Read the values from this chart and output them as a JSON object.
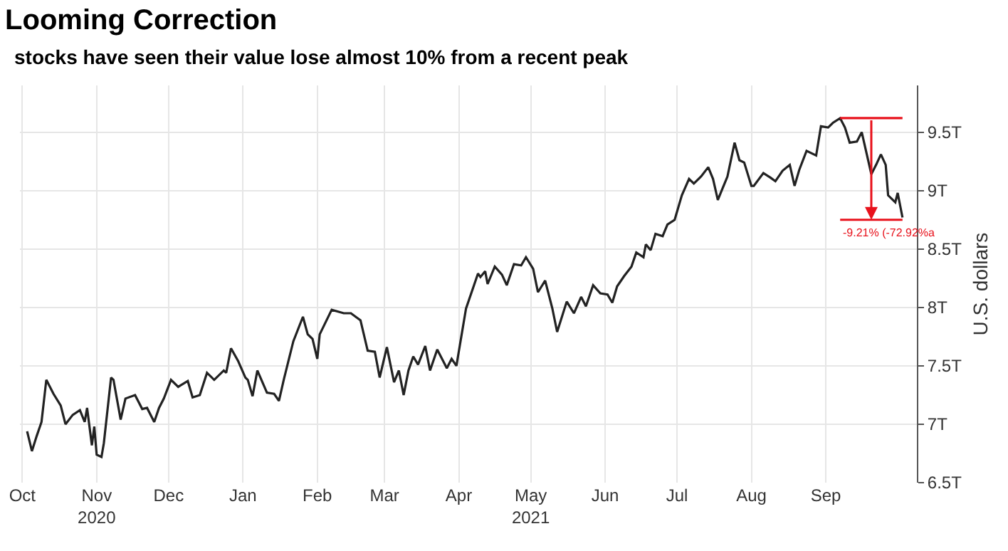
{
  "chart_data": {
    "type": "line",
    "title": "Looming Correction",
    "subtitle": "stocks have seen their value lose almost 10% from a recent peak",
    "ylabel": "U.S. dollars",
    "x": [
      "2020-10-03",
      "2020-10-05",
      "2020-10-07",
      "2020-10-09",
      "2020-10-11",
      "2020-10-14",
      "2020-10-17",
      "2020-10-19",
      "2020-10-22",
      "2020-10-25",
      "2020-10-27",
      "2020-10-28",
      "2020-10-30",
      "2020-10-31",
      "2020-11-01",
      "2020-11-03",
      "2020-11-04",
      "2020-11-07",
      "2020-11-08",
      "2020-11-11",
      "2020-11-13",
      "2020-11-17",
      "2020-11-20",
      "2020-11-22",
      "2020-11-25",
      "2020-11-27",
      "2020-11-29",
      "2020-12-02",
      "2020-12-05",
      "2020-12-09",
      "2020-12-11",
      "2020-12-14",
      "2020-12-17",
      "2020-12-20",
      "2020-12-24",
      "2020-12-25",
      "2020-12-27",
      "2020-12-30",
      "2021-01-02",
      "2021-01-03",
      "2021-01-05",
      "2021-01-07",
      "2021-01-11",
      "2021-01-14",
      "2021-01-16",
      "2021-01-18",
      "2021-01-22",
      "2021-01-26",
      "2021-01-28",
      "2021-01-30",
      "2021-02-01",
      "2021-02-02",
      "2021-02-07",
      "2021-02-12",
      "2021-02-15",
      "2021-02-19",
      "2021-02-22",
      "2021-02-25",
      "2021-02-27",
      "2021-03-02",
      "2021-03-05",
      "2021-03-07",
      "2021-03-09",
      "2021-03-11",
      "2021-03-13",
      "2021-03-15",
      "2021-03-18",
      "2021-03-20",
      "2021-03-23",
      "2021-03-27",
      "2021-03-29",
      "2021-03-31",
      "2021-04-04",
      "2021-04-09",
      "2021-04-10",
      "2021-04-12",
      "2021-04-13",
      "2021-04-16",
      "2021-04-19",
      "2021-04-21",
      "2021-04-24",
      "2021-04-27",
      "2021-04-29",
      "2021-05-02",
      "2021-05-04",
      "2021-05-07",
      "2021-05-10",
      "2021-05-12",
      "2021-05-16",
      "2021-05-19",
      "2021-05-22",
      "2021-05-24",
      "2021-05-27",
      "2021-05-30",
      "2021-06-02",
      "2021-06-04",
      "2021-06-06",
      "2021-06-09",
      "2021-06-12",
      "2021-06-14",
      "2021-06-17",
      "2021-06-18",
      "2021-06-20",
      "2021-06-22",
      "2021-06-25",
      "2021-06-27",
      "2021-06-30",
      "2021-07-03",
      "2021-07-06",
      "2021-07-08",
      "2021-07-11",
      "2021-07-14",
      "2021-07-16",
      "2021-07-18",
      "2021-07-20",
      "2021-07-22",
      "2021-07-25",
      "2021-07-27",
      "2021-07-29",
      "2021-08-01",
      "2021-08-02",
      "2021-08-06",
      "2021-08-09",
      "2021-08-11",
      "2021-08-14",
      "2021-08-17",
      "2021-08-19",
      "2021-08-21",
      "2021-08-24",
      "2021-08-28",
      "2021-08-30",
      "2021-09-02",
      "2021-09-04",
      "2021-09-07",
      "2021-09-09",
      "2021-09-11",
      "2021-09-14",
      "2021-09-16",
      "2021-09-18",
      "2021-09-20",
      "2021-09-22",
      "2021-09-24",
      "2021-09-26",
      "2021-09-27",
      "2021-09-30",
      "2021-10-01",
      "2021-10-03"
    ],
    "series": [
      {
        "color": "#222222",
        "values": [
          6.94,
          6.77,
          6.9,
          7.02,
          7.38,
          7.26,
          7.16,
          7.0,
          7.08,
          7.12,
          7.02,
          7.14,
          6.82,
          6.98,
          6.74,
          6.72,
          6.84,
          7.4,
          7.38,
          7.04,
          7.22,
          7.25,
          7.13,
          7.14,
          7.02,
          7.14,
          7.22,
          7.38,
          7.32,
          7.37,
          7.23,
          7.25,
          7.44,
          7.38,
          7.46,
          7.44,
          7.65,
          7.54,
          7.4,
          7.38,
          7.24,
          7.46,
          7.27,
          7.26,
          7.2,
          7.38,
          7.71,
          7.92,
          7.77,
          7.73,
          7.56,
          7.77,
          7.98,
          7.95,
          7.95,
          7.89,
          7.63,
          7.62,
          7.4,
          7.66,
          7.36,
          7.46,
          7.25,
          7.46,
          7.58,
          7.51,
          7.67,
          7.46,
          7.64,
          7.48,
          7.56,
          7.5,
          7.99,
          8.29,
          8.26,
          8.31,
          8.2,
          8.35,
          8.28,
          8.19,
          8.37,
          8.36,
          8.43,
          8.33,
          8.13,
          8.23,
          7.99,
          7.79,
          8.05,
          7.95,
          8.09,
          8.01,
          8.19,
          8.12,
          8.11,
          8.04,
          8.18,
          8.27,
          8.35,
          8.47,
          8.43,
          8.54,
          8.49,
          8.63,
          8.61,
          8.71,
          8.75,
          8.96,
          9.1,
          9.06,
          9.12,
          9.2,
          9.1,
          8.92,
          9.02,
          9.12,
          9.41,
          9.26,
          9.24,
          9.04,
          9.04,
          9.15,
          9.11,
          9.08,
          9.17,
          9.22,
          9.04,
          9.18,
          9.34,
          9.3,
          9.55,
          9.54,
          9.58,
          9.62,
          9.54,
          9.41,
          9.42,
          9.5,
          9.32,
          9.14,
          9.22,
          9.31,
          9.22,
          8.96,
          8.9,
          8.98,
          8.77
        ]
      },
      {
        "type": "line",
        "color": "#e8121c",
        "x": [
          "2021-09-07",
          "2021-10-03"
        ],
        "values": [
          9.62,
          9.62
        ]
      },
      {
        "type": "line",
        "color": "#e8121c",
        "x": [
          "2021-09-07",
          "2021-10-03"
        ],
        "values": [
          8.75,
          8.75
        ]
      }
    ],
    "xlim": [
      "2020-09-30",
      "2021-10-09"
    ],
    "xticks": [
      {
        "value": "2020-10-01",
        "label": "Oct"
      },
      {
        "value": "2020-11-01",
        "label": "Nov\n2020"
      },
      {
        "value": "2020-12-01",
        "label": "Dec"
      },
      {
        "value": "2021-01-01",
        "label": "Jan"
      },
      {
        "value": "2021-02-01",
        "label": "Feb"
      },
      {
        "value": "2021-03-01",
        "label": "Mar"
      },
      {
        "value": "2021-04-01",
        "label": "Apr"
      },
      {
        "value": "2021-05-01",
        "label": "May\n2021"
      },
      {
        "value": "2021-06-01",
        "label": "Jun"
      },
      {
        "value": "2021-07-01",
        "label": "Jul"
      },
      {
        "value": "2021-08-01",
        "label": "Aug"
      },
      {
        "value": "2021-09-01",
        "label": "Sep"
      }
    ],
    "ylim": [
      6.5,
      9.9
    ],
    "yticks": [
      {
        "value": 6.5,
        "label": "6.5T"
      },
      {
        "value": 7,
        "label": "7T"
      },
      {
        "value": 7.5,
        "label": "7.5T"
      },
      {
        "value": 8,
        "label": "8T"
      },
      {
        "value": 8.5,
        "label": "8.5T"
      },
      {
        "value": 9,
        "label": "9T"
      },
      {
        "value": 9.5,
        "label": "9.5T"
      }
    ],
    "grid": true,
    "annotations": [
      "-9.21% (-72.92%a"
    ]
  }
}
